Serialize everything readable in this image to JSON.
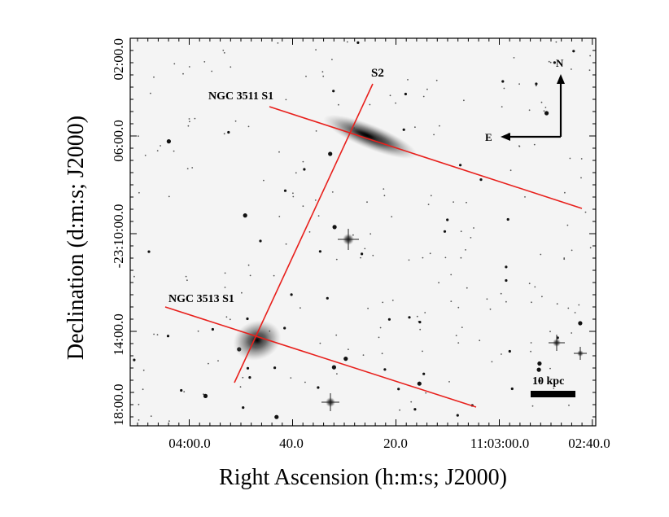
{
  "figure": {
    "x_axis_title": "Right Ascension (h:m:s; J2000)",
    "y_axis_title": "Declination (d:m:s; J2000)",
    "x_tick_labels": [
      "04:00.0",
      "40.0",
      "20.0",
      "11:03:00.0",
      "02:40.0"
    ],
    "y_tick_labels": [
      "02:00.0",
      "06:00.0",
      "-23:10:00.0",
      "14:00.0",
      "18:00.0"
    ]
  },
  "annotations": {
    "slit_s2": "S2",
    "ngc3511_slit": "NGC 3511 S1",
    "ngc3513_slit": "NGC 3513 S1",
    "compass_north": "N",
    "compass_east": "E",
    "scale_bar": "10 kpc"
  },
  "colors": {
    "slit": "#e8201c",
    "frame": "#000000"
  }
}
